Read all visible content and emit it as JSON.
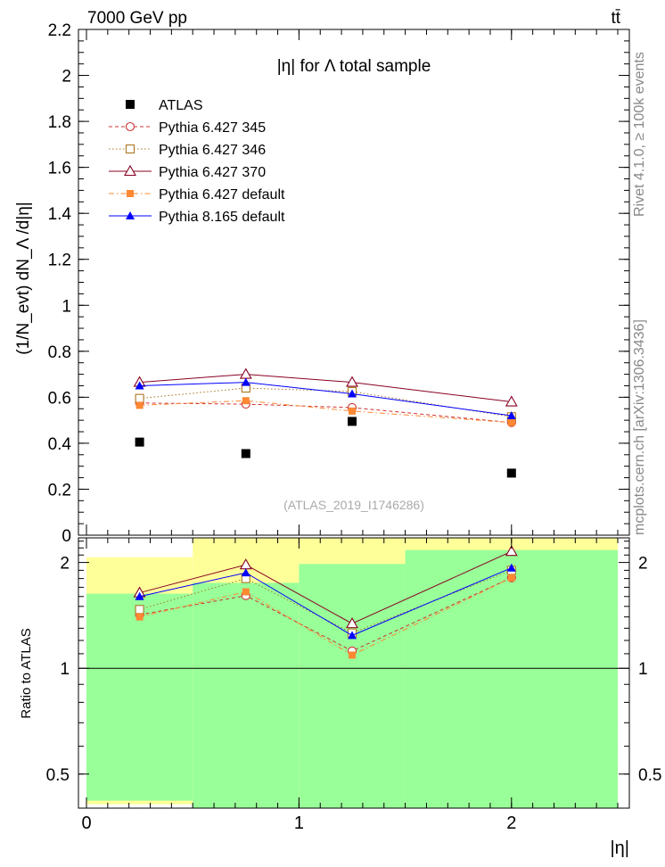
{
  "header": {
    "energy": "7000 GeV pp",
    "process": "tt̄"
  },
  "side_labels": {
    "rivet": "Rivet 4.1.0, ≥ 100k events",
    "mcplots": "mcplots.cern.ch [arXiv:1306.3436]"
  },
  "colors": {
    "atlas": "#000000",
    "p345": "#cc3333",
    "p346": "#aa7722",
    "p370": "#880022",
    "p6default": "#ff8833",
    "p8default": "#0000ff",
    "band_yellow": "#ffff99",
    "band_green": "#99ff99"
  },
  "chart_data": [
    {
      "type": "scatter",
      "title": "|η| for Λ total sample",
      "watermark": "(ATLAS_2019_I1746286)",
      "ylabel": "(1/N_evt) dN_Λ /d|η|",
      "xlim": [
        0,
        2.5
      ],
      "ylim": [
        0,
        2.2
      ],
      "yticks": [
        0,
        0.2,
        0.4,
        0.6,
        0.8,
        1,
        1.2,
        1.4,
        1.6,
        1.8,
        2,
        2.2
      ],
      "ytick_labels": [
        "0",
        "0.2",
        "0.4",
        "0.6",
        "0.8",
        "1",
        "1.2",
        "1.4",
        "1.6",
        "1.8",
        "2",
        "2.2"
      ],
      "x": [
        0.25,
        0.75,
        1.25,
        2.0
      ],
      "series": [
        {
          "key": "atlas",
          "name": "ATLAS",
          "values": [
            0.405,
            0.355,
            0.495,
            0.27
          ],
          "marker": "square-filled",
          "line": "none"
        },
        {
          "key": "p345",
          "name": "Pythia 6.427 345",
          "values": [
            0.575,
            0.57,
            0.555,
            0.49
          ],
          "marker": "circle-open",
          "line": "dashed"
        },
        {
          "key": "p346",
          "name": "Pythia 6.427 346",
          "values": [
            0.595,
            0.64,
            0.625,
            0.515
          ],
          "marker": "square-open",
          "line": "dotted"
        },
        {
          "key": "p370",
          "name": "Pythia 6.427 370",
          "values": [
            0.665,
            0.7,
            0.665,
            0.58
          ],
          "marker": "triangle-open",
          "line": "solid"
        },
        {
          "key": "p6default",
          "name": "Pythia 6.427 default",
          "values": [
            0.565,
            0.585,
            0.54,
            0.49
          ],
          "marker": "square-filled-small",
          "line": "dashdot"
        },
        {
          "key": "p8default",
          "name": "Pythia 8.165 default",
          "values": [
            0.65,
            0.665,
            0.615,
            0.52
          ],
          "marker": "triangle-filled",
          "line": "solid"
        }
      ]
    },
    {
      "type": "line",
      "ylabel": "Ratio to ATLAS",
      "xlabel": "|η|",
      "scale": "log",
      "ylim": [
        0.4,
        2.35
      ],
      "xlim": [
        0,
        2.5
      ],
      "xticks": [
        0,
        1,
        2
      ],
      "xtick_labels": [
        "0",
        "1",
        "2"
      ],
      "yticks": [
        0.5,
        1,
        2
      ],
      "ytick_labels": [
        "0.5",
        "1",
        "2"
      ],
      "x": [
        0.25,
        0.75,
        1.25,
        2.0
      ],
      "bins": [
        [
          0,
          0.5
        ],
        [
          0.5,
          1.0
        ],
        [
          1.0,
          1.5
        ],
        [
          1.5,
          2.5
        ]
      ],
      "band_yellow": [
        [
          0.41,
          2.07
        ],
        [
          0.4,
          2.35
        ],
        [
          0.4,
          2.35
        ],
        [
          0.4,
          2.35
        ]
      ],
      "band_green": [
        [
          0.42,
          1.63
        ],
        [
          0.4,
          1.75
        ],
        [
          0.4,
          1.98
        ],
        [
          0.4,
          2.17
        ]
      ],
      "series": [
        {
          "key": "p345",
          "values": [
            1.42,
            1.61,
            1.12,
            1.81
          ]
        },
        {
          "key": "p346",
          "values": [
            1.47,
            1.8,
            1.26,
            1.9
          ]
        },
        {
          "key": "p370",
          "values": [
            1.64,
            1.97,
            1.34,
            2.15
          ]
        },
        {
          "key": "p6default",
          "values": [
            1.4,
            1.65,
            1.09,
            1.81
          ]
        },
        {
          "key": "p8default",
          "values": [
            1.6,
            1.87,
            1.24,
            1.93
          ]
        }
      ]
    }
  ]
}
